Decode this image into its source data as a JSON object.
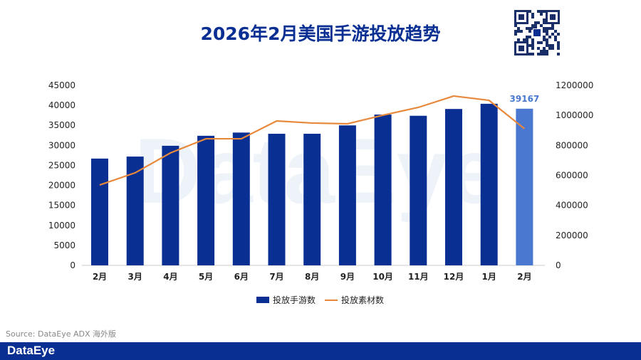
{
  "title": "2026年2月美国手游投放趋势",
  "source": "Source: DataEye ADX 海外版",
  "footer_logo": "DataEye",
  "watermark": "DataEye",
  "colors": {
    "bar": "#0a2f93",
    "bar_highlight": "#4a78d0",
    "line": "#e8883a",
    "footer": "#0a2f93"
  },
  "chart_data": {
    "type": "bar+line",
    "categories": [
      "2月",
      "3月",
      "4月",
      "5月",
      "6月",
      "7月",
      "8月",
      "9月",
      "10月",
      "11月",
      "12月",
      "1月",
      "2月"
    ],
    "series": [
      {
        "name": "投放手游数",
        "type": "bar",
        "axis": "left",
        "values": [
          26700,
          27200,
          29900,
          32400,
          33200,
          32900,
          32900,
          35000,
          37700,
          37400,
          39100,
          40400,
          39167
        ]
      },
      {
        "name": "投放素材数",
        "type": "line",
        "axis": "right",
        "values": [
          536000,
          617000,
          750000,
          844000,
          844000,
          963000,
          949000,
          944000,
          1001000,
          1053000,
          1129000,
          1100000,
          911000
        ]
      }
    ],
    "data_labels": [
      {
        "index": 12,
        "text": "39167"
      }
    ],
    "left_axis": {
      "ylim": [
        0,
        45000
      ],
      "ticks": [
        "0",
        "5000",
        "10000",
        "15000",
        "20000",
        "25000",
        "30000",
        "35000",
        "40000",
        "45000"
      ]
    },
    "right_axis": {
      "ylim": [
        0,
        1200000
      ],
      "ticks": [
        "0",
        "200000",
        "400000",
        "600000",
        "800000",
        "1000000",
        "1200000"
      ]
    },
    "grid": false,
    "legend": "bottom"
  }
}
